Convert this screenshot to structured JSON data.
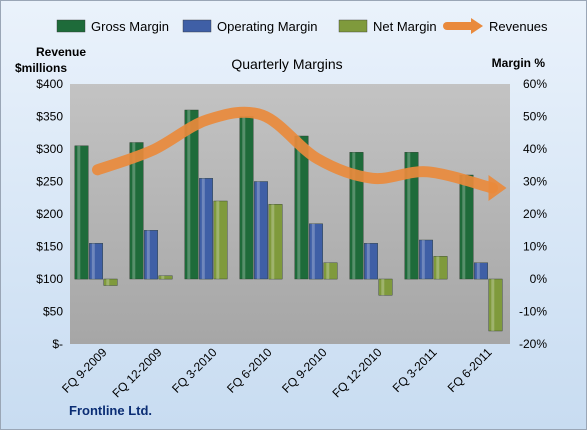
{
  "chart_data": {
    "type": "bar",
    "title": "Quarterly Margins",
    "footer": "Frontline Ltd.",
    "categories": [
      "FQ 9-2009",
      "FQ 12-2009",
      "FQ 3-2010",
      "FQ 6-2010",
      "FQ 9-2010",
      "FQ 12-2010",
      "FQ 3-2011",
      "FQ 6-2011"
    ],
    "y_left": {
      "label_line1": "Revenue",
      "label_line2": "$millions",
      "ylim": [
        0,
        400
      ],
      "ticks": [
        {
          "value": 0,
          "label": "$-"
        },
        {
          "value": 50,
          "label": "$50"
        },
        {
          "value": 100,
          "label": "$100"
        },
        {
          "value": 150,
          "label": "$150"
        },
        {
          "value": 200,
          "label": "$200"
        },
        {
          "value": 250,
          "label": "$250"
        },
        {
          "value": 300,
          "label": "$300"
        },
        {
          "value": 350,
          "label": "$350"
        },
        {
          "value": 400,
          "label": "$400"
        }
      ]
    },
    "y_right": {
      "label": "Margin %",
      "ylim": [
        -20,
        60
      ],
      "ticks": [
        {
          "value": -20,
          "label": "-20%"
        },
        {
          "value": -10,
          "label": "-10%"
        },
        {
          "value": 0,
          "label": "0%"
        },
        {
          "value": 10,
          "label": "10%"
        },
        {
          "value": 20,
          "label": "20%"
        },
        {
          "value": 30,
          "label": "30%"
        },
        {
          "value": 40,
          "label": "40%"
        },
        {
          "value": 50,
          "label": "50%"
        },
        {
          "value": 60,
          "label": "60%"
        }
      ]
    },
    "series": [
      {
        "name": "Gross Margin",
        "kind": "bar",
        "axis": "right",
        "color": "#1e6b3a",
        "values": [
          41,
          42,
          52,
          50,
          44,
          39,
          39,
          32
        ]
      },
      {
        "name": "Operating Margin",
        "kind": "bar",
        "axis": "right",
        "color": "#3f5fa6",
        "values": [
          11,
          15,
          31,
          30,
          17,
          11,
          12,
          5
        ]
      },
      {
        "name": "Net Margin",
        "kind": "bar",
        "axis": "right",
        "color": "#7f9a3c",
        "values": [
          -2,
          1,
          24,
          23,
          5,
          -5,
          7,
          -16
        ]
      },
      {
        "name": "Revenues",
        "kind": "line",
        "axis": "left",
        "color": "#e98a3c",
        "values": [
          268,
          298,
          345,
          352,
          285,
          255,
          265,
          240
        ]
      }
    ],
    "legend_position": "top",
    "grid": false
  }
}
